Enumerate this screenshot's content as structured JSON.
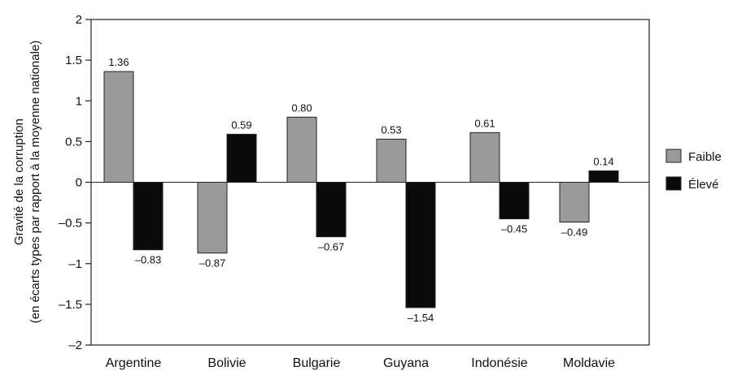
{
  "chart_data": {
    "type": "bar",
    "categories": [
      "Argentine",
      "Bolivie",
      "Bulgarie",
      "Guyana",
      "Indonésie",
      "Moldavie"
    ],
    "series": [
      {
        "name": "Faible",
        "color": "#9a9a9a",
        "values": [
          1.36,
          -0.87,
          0.8,
          0.53,
          0.61,
          -0.49
        ],
        "labels": [
          "1.36",
          "–0.87",
          "0.80",
          "0.53",
          "0.61",
          "–0.49"
        ]
      },
      {
        "name": "Élevé",
        "color": "#0a0a0a",
        "values": [
          -0.83,
          0.59,
          -0.67,
          -1.54,
          -0.45,
          0.14
        ],
        "labels": [
          "–0.83",
          "0.59",
          "–0.67",
          "–1.54",
          "–0.45",
          "0.14"
        ]
      }
    ],
    "ylabel_line1": "Gravité de la corruption",
    "ylabel_line2": "(en écarts types par rapport à la moyenne nationale)",
    "ylim": [
      -2,
      2
    ],
    "yticks": [
      2,
      1.5,
      1,
      0.5,
      0,
      -0.5,
      -1,
      -1.5,
      -2
    ],
    "ytick_labels": [
      "2",
      "1.5",
      "1",
      "0.5",
      "0",
      "–0.5",
      "–1",
      "–1.5",
      "–2"
    ],
    "grid": false,
    "legend_position": "right"
  }
}
